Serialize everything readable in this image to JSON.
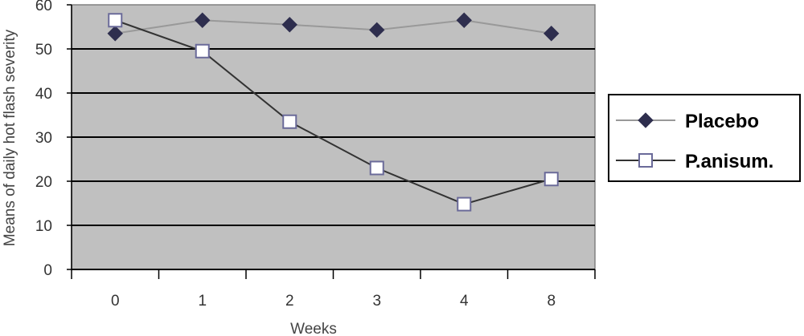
{
  "chart_data": {
    "type": "line",
    "categories": [
      "0",
      "1",
      "2",
      "3",
      "4",
      "8"
    ],
    "series": [
      {
        "name": "Placebo",
        "values": [
          53.5,
          56.5,
          55.5,
          54.3,
          56.5,
          53.5
        ],
        "marker": "diamond",
        "line_color": "#999999",
        "marker_fill": "#2e2e4e"
      },
      {
        "name": "P.anisum.",
        "values": [
          56.5,
          49.5,
          33.5,
          23,
          14.8,
          20.5
        ],
        "marker": "square",
        "line_color": "#333333",
        "marker_fill": "#ffffff",
        "marker_stroke": "#6a6a99"
      }
    ],
    "xlabel": "Weeks",
    "ylabel": "Means of daily hot flash severity",
    "ylim": [
      0,
      60
    ],
    "yticks": [
      "0",
      "10",
      "20",
      "30",
      "40",
      "50",
      "60"
    ],
    "grid": true,
    "legend_position": "right",
    "plot_background": "#c0c0c0"
  }
}
